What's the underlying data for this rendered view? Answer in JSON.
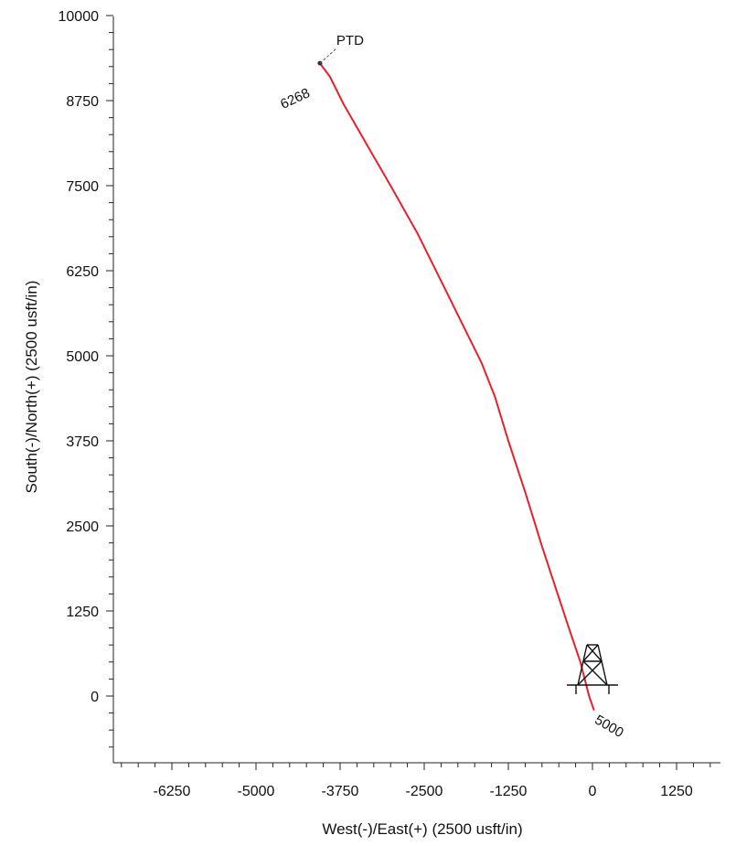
{
  "chart_data": {
    "type": "line",
    "title": "",
    "xlabel": "West(-)/East(+) (2500 usft/in)",
    "ylabel": "South(-)/North(+) (2500 usft/in)",
    "xlim": [
      -7000,
      2000
    ],
    "ylim": [
      -1000,
      10000
    ],
    "x_ticks": [
      -6250,
      -5000,
      -3750,
      -2500,
      -1250,
      0,
      1250
    ],
    "y_ticks": [
      0,
      1250,
      2500,
      3750,
      5000,
      6250,
      7500,
      8750,
      10000
    ],
    "x_tick_labels": [
      "-6250",
      "-5000",
      "-3750",
      "-2500",
      "-1250",
      "0",
      "1250"
    ],
    "y_tick_labels": [
      "0",
      "1250",
      "2500",
      "3750",
      "5000",
      "6250",
      "7500",
      "8750",
      "10000"
    ],
    "grid": false,
    "series": [
      {
        "color": "#e8202a",
        "x": [
          20,
          -50,
          -180,
          -350,
          -550,
          -750,
          -1000,
          -1250,
          -1450,
          -1650,
          -1950,
          -2200,
          -2600,
          -3000,
          -3350,
          -3700,
          -3900,
          -4050
        ],
        "y": [
          -200,
          0,
          500,
          1000,
          1600,
          2200,
          3000,
          3750,
          4400,
          4900,
          5500,
          6000,
          6800,
          7500,
          8100,
          8700,
          9100,
          9300
        ]
      }
    ],
    "annotations": [
      {
        "text": "PTD",
        "x": -4050,
        "y": 9300
      },
      {
        "text": "6268",
        "x": -4050,
        "y": 9300
      },
      {
        "text": "5000",
        "x": 20,
        "y": -200
      }
    ]
  }
}
